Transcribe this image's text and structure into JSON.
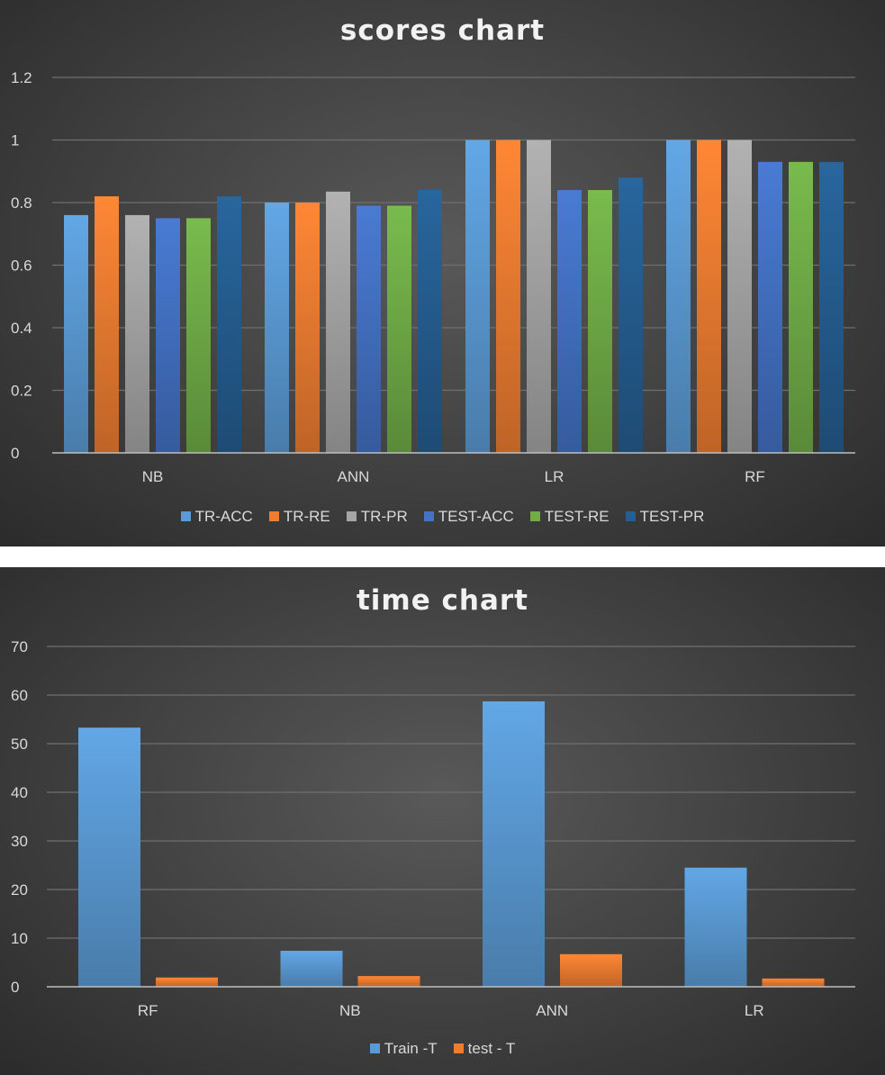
{
  "chart_data": [
    {
      "type": "bar",
      "title": "scores chart",
      "categories": [
        "NB",
        "ANN",
        "LR",
        "RF"
      ],
      "ylim": [
        0,
        1.2
      ],
      "yticks": [
        "0",
        "0.2",
        "0.4",
        "0.6",
        "0.8",
        "1",
        "1.2"
      ],
      "grid": true,
      "legend_position": "bottom",
      "series": [
        {
          "name": "TR-ACC",
          "color": "#5b9bd5",
          "values": [
            0.76,
            0.8,
            1.0,
            1.0
          ]
        },
        {
          "name": "TR-RE",
          "color": "#ed7d31",
          "values": [
            0.82,
            0.8,
            1.0,
            1.0
          ]
        },
        {
          "name": "TR-PR",
          "color": "#a5a5a5",
          "values": [
            0.76,
            0.835,
            1.0,
            1.0
          ]
        },
        {
          "name": "TEST-ACC",
          "color": "#4472c4",
          "values": [
            0.75,
            0.79,
            0.84,
            0.93
          ]
        },
        {
          "name": "TEST-RE",
          "color": "#70ad47",
          "values": [
            0.75,
            0.79,
            0.84,
            0.93
          ]
        },
        {
          "name": "TEST-PR",
          "color": "#255e91",
          "values": [
            0.82,
            0.84,
            0.88,
            0.93
          ]
        }
      ]
    },
    {
      "type": "bar",
      "title": "time chart",
      "categories": [
        "RF",
        "NB",
        "ANN",
        "LR"
      ],
      "ylim": [
        0,
        70
      ],
      "yticks": [
        "0",
        "10",
        "20",
        "30",
        "40",
        "50",
        "60",
        "70"
      ],
      "grid": true,
      "legend_position": "bottom",
      "series": [
        {
          "name": "Train -T",
          "color": "#5b9bd5",
          "values": [
            53.3,
            7.4,
            58.7,
            24.5
          ]
        },
        {
          "name": "test - T",
          "color": "#ed7d31",
          "values": [
            1.9,
            2.2,
            6.7,
            1.7
          ]
        }
      ]
    }
  ]
}
